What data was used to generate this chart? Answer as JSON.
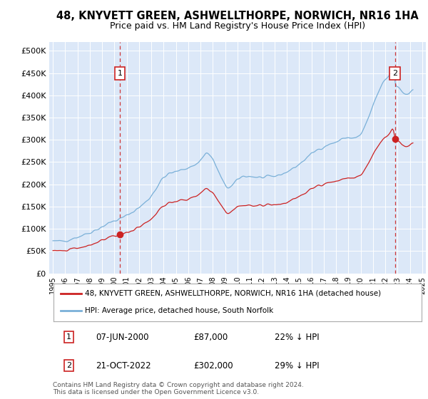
{
  "title": "48, KNYVETT GREEN, ASHWELLTHORPE, NORWICH, NR16 1HA",
  "subtitle": "Price paid vs. HM Land Registry's House Price Index (HPI)",
  "title_fontsize": 10.5,
  "subtitle_fontsize": 9,
  "ylim": [
    0,
    520000
  ],
  "yticks": [
    0,
    50000,
    100000,
    150000,
    200000,
    250000,
    300000,
    350000,
    400000,
    450000,
    500000
  ],
  "ytick_labels": [
    "£0",
    "£50K",
    "£100K",
    "£150K",
    "£200K",
    "£250K",
    "£300K",
    "£350K",
    "£400K",
    "£450K",
    "£500K"
  ],
  "xlim_start": 1994.7,
  "xlim_end": 2025.3,
  "xtick_years": [
    1995,
    1996,
    1997,
    1998,
    1999,
    2000,
    2001,
    2002,
    2003,
    2004,
    2005,
    2006,
    2007,
    2008,
    2009,
    2010,
    2011,
    2012,
    2013,
    2014,
    2015,
    2016,
    2017,
    2018,
    2019,
    2020,
    2021,
    2022,
    2023,
    2024,
    2025
  ],
  "plot_bg_color": "#dce8f8",
  "fig_bg_color": "#ffffff",
  "grid_color": "#ffffff",
  "hpi_color": "#7ab0d8",
  "price_color": "#cc2222",
  "marker1_date": 2000.44,
  "marker1_price": 87000,
  "marker2_date": 2022.8,
  "marker2_price": 302000,
  "sale1_label": "1",
  "sale2_label": "2",
  "legend_line1": "48, KNYVETT GREEN, ASHWELLTHORPE, NORWICH, NR16 1HA (detached house)",
  "legend_line2": "HPI: Average price, detached house, South Norfolk",
  "table_row1": [
    "1",
    "07-JUN-2000",
    "£87,000",
    "22% ↓ HPI"
  ],
  "table_row2": [
    "2",
    "21-OCT-2022",
    "£302,000",
    "29% ↓ HPI"
  ],
  "footnote": "Contains HM Land Registry data © Crown copyright and database right 2024.\nThis data is licensed under the Open Government Licence v3.0."
}
